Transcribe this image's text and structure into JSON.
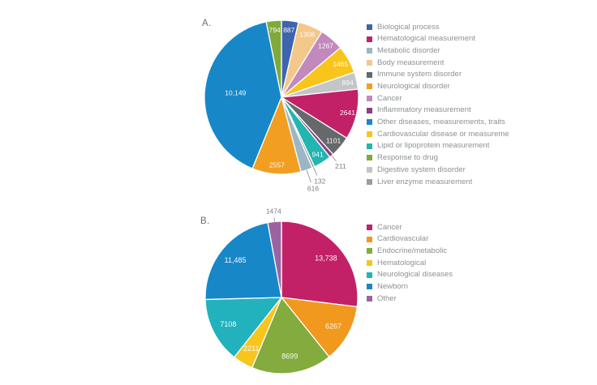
{
  "page": {
    "background": "#ffffff"
  },
  "chart_data": [
    {
      "type": "pie",
      "panel_label": "A.",
      "start_angle_deg": 0,
      "direction": "clockwise",
      "slices": [
        {
          "label": "Biological process",
          "value": 887,
          "display": "887",
          "color": "#3E64AD",
          "label_outside": false
        },
        {
          "label": "Body measurement",
          "value": 1308,
          "display": "1308",
          "color": "#F3C88A",
          "label_outside": false
        },
        {
          "label": "Cancer",
          "value": 1267,
          "display": "1267",
          "color": "#C289BC",
          "label_outside": false
        },
        {
          "label": "Cardiovascular disease or measureme",
          "value": 1465,
          "display": "1465",
          "color": "#F8C51D",
          "label_outside": false
        },
        {
          "label": "Digestive system disorder",
          "value": 894,
          "display": "894",
          "color": "#C3C6C8",
          "label_outside": false
        },
        {
          "label": "Hematological measurement",
          "value": 2641,
          "display": "2641",
          "color": "#C22167",
          "label_outside": false
        },
        {
          "label": "Immune system disorder",
          "value": 1101,
          "display": "1101",
          "color": "#66696C",
          "label_outside": false
        },
        {
          "label": "Inflammatory measurement",
          "value": 211,
          "display": "211",
          "color": "#8C3E7F",
          "label_outside": true
        },
        {
          "label": "Lipid or lipoprotein measurement",
          "value": 941,
          "display": "941",
          "color": "#22B6B0",
          "label_outside": false
        },
        {
          "label": "Liver enzyme measurement",
          "value": 132,
          "display": "132",
          "color": "#9B9EA0",
          "label_outside": true
        },
        {
          "label": "Metabolic disorder",
          "value": 616,
          "display": "616",
          "color": "#9BB6C4",
          "label_outside": true
        },
        {
          "label": "Neurological disorder",
          "value": 2557,
          "display": "2557",
          "color": "#F29E21",
          "label_outside": false
        },
        {
          "label": "Other diseases, measurements, traits",
          "value": 10149,
          "display": "10,149",
          "color": "#1787C8",
          "label_outside": false
        },
        {
          "label": "Response to drug",
          "value": 794,
          "display": "794",
          "color": "#80A93C",
          "label_outside": false
        }
      ],
      "legend": [
        {
          "label": "Biological process",
          "color": "#3E64AD"
        },
        {
          "label": "Hematological measurement",
          "color": "#C22167"
        },
        {
          "label": "Metabolic disorder",
          "color": "#9BB6C4"
        },
        {
          "label": "Body measurement",
          "color": "#F3C88A"
        },
        {
          "label": "Immune system disorder",
          "color": "#66696C"
        },
        {
          "label": "Neurological disorder",
          "color": "#F29E21"
        },
        {
          "label": "Cancer",
          "color": "#C289BC"
        },
        {
          "label": "Inflammatory measurement",
          "color": "#8C3E7F"
        },
        {
          "label": "Other diseases, measurements, traits",
          "color": "#1787C8"
        },
        {
          "label": "Cardiovascular disease or measureme",
          "color": "#F8C51D"
        },
        {
          "label": "Lipid or lipoprotein measurement",
          "color": "#22B6B0"
        },
        {
          "label": "Response to drug",
          "color": "#80A93C"
        },
        {
          "label": "Digestive system disorder",
          "color": "#C3C6C8"
        },
        {
          "label": "Liver enzyme measurement",
          "color": "#9B9EA0"
        }
      ],
      "legend_position": "right"
    },
    {
      "type": "pie",
      "panel_label": "B.",
      "start_angle_deg": 0,
      "direction": "clockwise",
      "slices": [
        {
          "label": "Cancer",
          "value": 13738,
          "display": "13,738",
          "color": "#C22167",
          "label_outside": false
        },
        {
          "label": "Cardiovascular",
          "value": 6267,
          "display": "6267",
          "color": "#F0991E",
          "label_outside": false
        },
        {
          "label": "Endocrine/metabolic",
          "value": 8699,
          "display": "8699",
          "color": "#83AB3D",
          "label_outside": false
        },
        {
          "label": "Hematological",
          "value": 2211,
          "display": "2211",
          "color": "#F8C51D",
          "label_outside": false
        },
        {
          "label": "Neurological diseases",
          "value": 7108,
          "display": "7108",
          "color": "#22B2BD",
          "label_outside": false
        },
        {
          "label": "Newborn",
          "value": 11485,
          "display": "11,485",
          "color": "#1787C8",
          "label_outside": false
        },
        {
          "label": "Other",
          "value": 1474,
          "display": "1474",
          "color": "#9A64A0",
          "label_outside": true
        }
      ],
      "legend": [
        {
          "label": "Cancer",
          "color": "#C22167"
        },
        {
          "label": "Cardiovascular",
          "color": "#F0991E"
        },
        {
          "label": "Endocrine/metabolic",
          "color": "#83AB3D"
        },
        {
          "label": "Hematological",
          "color": "#F8C51D"
        },
        {
          "label": "Neurological diseases",
          "color": "#22B2BD"
        },
        {
          "label": "Newborn",
          "color": "#1787C8"
        },
        {
          "label": "Other",
          "color": "#9A64A0"
        }
      ],
      "legend_position": "right"
    }
  ]
}
